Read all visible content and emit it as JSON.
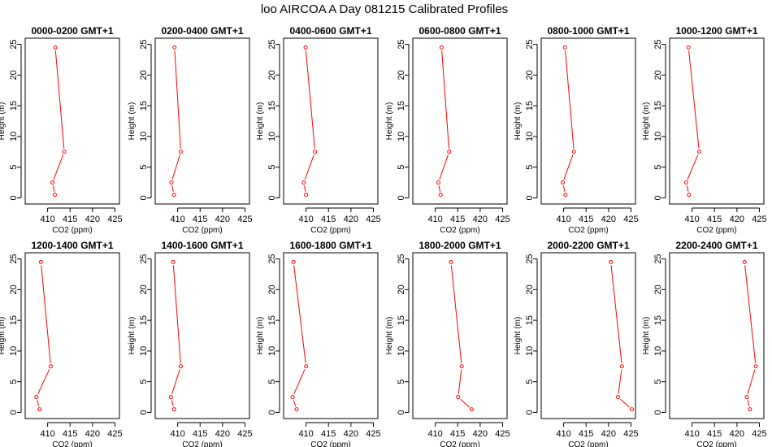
{
  "supertitle": "loo AIRCOA A  Day 081215  Calibrated Profiles",
  "chart_data": [
    {
      "type": "line",
      "title": "0000-0200 GMT+1",
      "xlabel": "CO2 (ppm)",
      "ylabel": "Height (m)",
      "xlim": [
        405,
        426
      ],
      "ylim": [
        -1,
        26
      ],
      "xticks": [
        410,
        415,
        420,
        425
      ],
      "yticks": [
        0,
        5,
        10,
        15,
        20,
        25
      ],
      "series": [
        {
          "color": "#ff0000",
          "points": [
            {
              "x": 411.7,
              "y": 24.5
            },
            {
              "x": 413.7,
              "y": 7.5
            },
            {
              "x": 411.1,
              "y": 2.5
            },
            {
              "x": 411.6,
              "y": 0.5
            }
          ]
        }
      ]
    },
    {
      "type": "line",
      "title": "0200-0400 GMT+1",
      "xlabel": "CO2 (ppm)",
      "ylabel": "Height (m)",
      "xlim": [
        405,
        426
      ],
      "ylim": [
        -1,
        26
      ],
      "xticks": [
        410,
        415,
        420,
        425
      ],
      "yticks": [
        0,
        5,
        10,
        15,
        20,
        25
      ],
      "series": [
        {
          "color": "#ff0000",
          "points": [
            {
              "x": 409.3,
              "y": 24.5
            },
            {
              "x": 410.7,
              "y": 7.5
            },
            {
              "x": 408.6,
              "y": 2.5
            },
            {
              "x": 409.2,
              "y": 0.5
            }
          ]
        }
      ]
    },
    {
      "type": "line",
      "title": "0400-0600 GMT+1",
      "xlabel": "CO2 (ppm)",
      "ylabel": "Height (m)",
      "xlim": [
        405,
        426
      ],
      "ylim": [
        -1,
        26
      ],
      "xticks": [
        410,
        415,
        420,
        425
      ],
      "yticks": [
        0,
        5,
        10,
        15,
        20,
        25
      ],
      "series": [
        {
          "color": "#ff0000",
          "points": [
            {
              "x": 409.9,
              "y": 24.5
            },
            {
              "x": 412.0,
              "y": 7.5
            },
            {
              "x": 409.5,
              "y": 2.5
            },
            {
              "x": 410.0,
              "y": 0.5
            }
          ]
        }
      ]
    },
    {
      "type": "line",
      "title": "0600-0800 GMT+1",
      "xlabel": "CO2 (ppm)",
      "ylabel": "Height (m)",
      "xlim": [
        405,
        426
      ],
      "ylim": [
        -1,
        26
      ],
      "xticks": [
        410,
        415,
        420,
        425
      ],
      "yticks": [
        0,
        5,
        10,
        15,
        20,
        25
      ],
      "series": [
        {
          "color": "#ff0000",
          "points": [
            {
              "x": 411.4,
              "y": 24.5
            },
            {
              "x": 413.1,
              "y": 7.5
            },
            {
              "x": 410.7,
              "y": 2.5
            },
            {
              "x": 411.2,
              "y": 0.5
            }
          ]
        }
      ]
    },
    {
      "type": "line",
      "title": "0800-1000 GMT+1",
      "xlabel": "CO2 (ppm)",
      "ylabel": "Height (m)",
      "xlim": [
        405,
        426
      ],
      "ylim": [
        -1,
        26
      ],
      "xticks": [
        410,
        415,
        420,
        425
      ],
      "yticks": [
        0,
        5,
        10,
        15,
        20,
        25
      ],
      "series": [
        {
          "color": "#ff0000",
          "points": [
            {
              "x": 410.3,
              "y": 24.5
            },
            {
              "x": 412.3,
              "y": 7.5
            },
            {
              "x": 409.8,
              "y": 2.5
            },
            {
              "x": 410.4,
              "y": 0.5
            }
          ]
        }
      ]
    },
    {
      "type": "line",
      "title": "1000-1200 GMT+1",
      "xlabel": "CO2 (ppm)",
      "ylabel": "Height (m)",
      "xlim": [
        405,
        426
      ],
      "ylim": [
        -1,
        26
      ],
      "xticks": [
        410,
        415,
        420,
        425
      ],
      "yticks": [
        0,
        5,
        10,
        15,
        20,
        25
      ],
      "series": [
        {
          "color": "#ff0000",
          "points": [
            {
              "x": 409.2,
              "y": 24.5
            },
            {
              "x": 411.6,
              "y": 7.5
            },
            {
              "x": 408.7,
              "y": 2.5
            },
            {
              "x": 409.3,
              "y": 0.5
            }
          ]
        }
      ]
    },
    {
      "type": "line",
      "title": "1200-1400 GMT+1",
      "xlabel": "CO2 (ppm)",
      "ylabel": "Height (m)",
      "xlim": [
        405,
        426
      ],
      "ylim": [
        -1,
        26
      ],
      "xticks": [
        410,
        415,
        420,
        425
      ],
      "yticks": [
        0,
        5,
        10,
        15,
        20,
        25
      ],
      "series": [
        {
          "color": "#ff0000",
          "points": [
            {
              "x": 408.5,
              "y": 24.5
            },
            {
              "x": 410.7,
              "y": 7.5
            },
            {
              "x": 407.5,
              "y": 2.5
            },
            {
              "x": 408.2,
              "y": 0.5
            }
          ]
        }
      ]
    },
    {
      "type": "line",
      "title": "1400-1600 GMT+1",
      "xlabel": "CO2 (ppm)",
      "ylabel": "Height (m)",
      "xlim": [
        405,
        426
      ],
      "ylim": [
        -1,
        26
      ],
      "xticks": [
        410,
        415,
        420,
        425
      ],
      "yticks": [
        0,
        5,
        10,
        15,
        20,
        25
      ],
      "series": [
        {
          "color": "#ff0000",
          "points": [
            {
              "x": 409.0,
              "y": 24.5
            },
            {
              "x": 410.7,
              "y": 7.5
            },
            {
              "x": 408.5,
              "y": 2.5
            },
            {
              "x": 409.2,
              "y": 0.5
            }
          ]
        }
      ]
    },
    {
      "type": "line",
      "title": "1600-1800 GMT+1",
      "xlabel": "CO2 (ppm)",
      "ylabel": "Height (m)",
      "xlim": [
        405,
        426
      ],
      "ylim": [
        -1,
        26
      ],
      "xticks": [
        410,
        415,
        420,
        425
      ],
      "yticks": [
        0,
        5,
        10,
        15,
        20,
        25
      ],
      "series": [
        {
          "color": "#ff0000",
          "points": [
            {
              "x": 407.2,
              "y": 24.5
            },
            {
              "x": 410.0,
              "y": 7.5
            },
            {
              "x": 407.0,
              "y": 2.5
            },
            {
              "x": 407.9,
              "y": 0.5
            }
          ]
        }
      ]
    },
    {
      "type": "line",
      "title": "1800-2000 GMT+1",
      "xlabel": "CO2 (ppm)",
      "ylabel": "Height (m)",
      "xlim": [
        405,
        426
      ],
      "ylim": [
        -1,
        26
      ],
      "xticks": [
        410,
        415,
        420,
        425
      ],
      "yticks": [
        0,
        5,
        10,
        15,
        20,
        25
      ],
      "series": [
        {
          "color": "#ff0000",
          "points": [
            {
              "x": 413.5,
              "y": 24.5
            },
            {
              "x": 415.9,
              "y": 7.5
            },
            {
              "x": 415.1,
              "y": 2.5
            },
            {
              "x": 418.1,
              "y": 0.5
            }
          ]
        }
      ]
    },
    {
      "type": "line",
      "title": "2000-2200 GMT+1",
      "xlabel": "CO2 (ppm)",
      "ylabel": "Height (m)",
      "xlim": [
        405,
        426
      ],
      "ylim": [
        -1,
        26
      ],
      "xticks": [
        410,
        415,
        420,
        425
      ],
      "yticks": [
        0,
        5,
        10,
        15,
        20,
        25
      ],
      "series": [
        {
          "color": "#ff0000",
          "points": [
            {
              "x": 420.5,
              "y": 24.5
            },
            {
              "x": 423.0,
              "y": 7.5
            },
            {
              "x": 422.1,
              "y": 2.5
            },
            {
              "x": 425.2,
              "y": 0.5
            }
          ]
        }
      ]
    },
    {
      "type": "line",
      "title": "2200-2400 GMT+1",
      "xlabel": "CO2 (ppm)",
      "ylabel": "Height (m)",
      "xlim": [
        405,
        426
      ],
      "ylim": [
        -1,
        26
      ],
      "xticks": [
        410,
        415,
        420,
        425
      ],
      "yticks": [
        0,
        5,
        10,
        15,
        20,
        25
      ],
      "series": [
        {
          "color": "#ff0000",
          "points": [
            {
              "x": 421.7,
              "y": 24.5
            },
            {
              "x": 424.2,
              "y": 7.5
            },
            {
              "x": 422.2,
              "y": 2.5
            },
            {
              "x": 422.9,
              "y": 0.5
            }
          ]
        }
      ]
    }
  ]
}
